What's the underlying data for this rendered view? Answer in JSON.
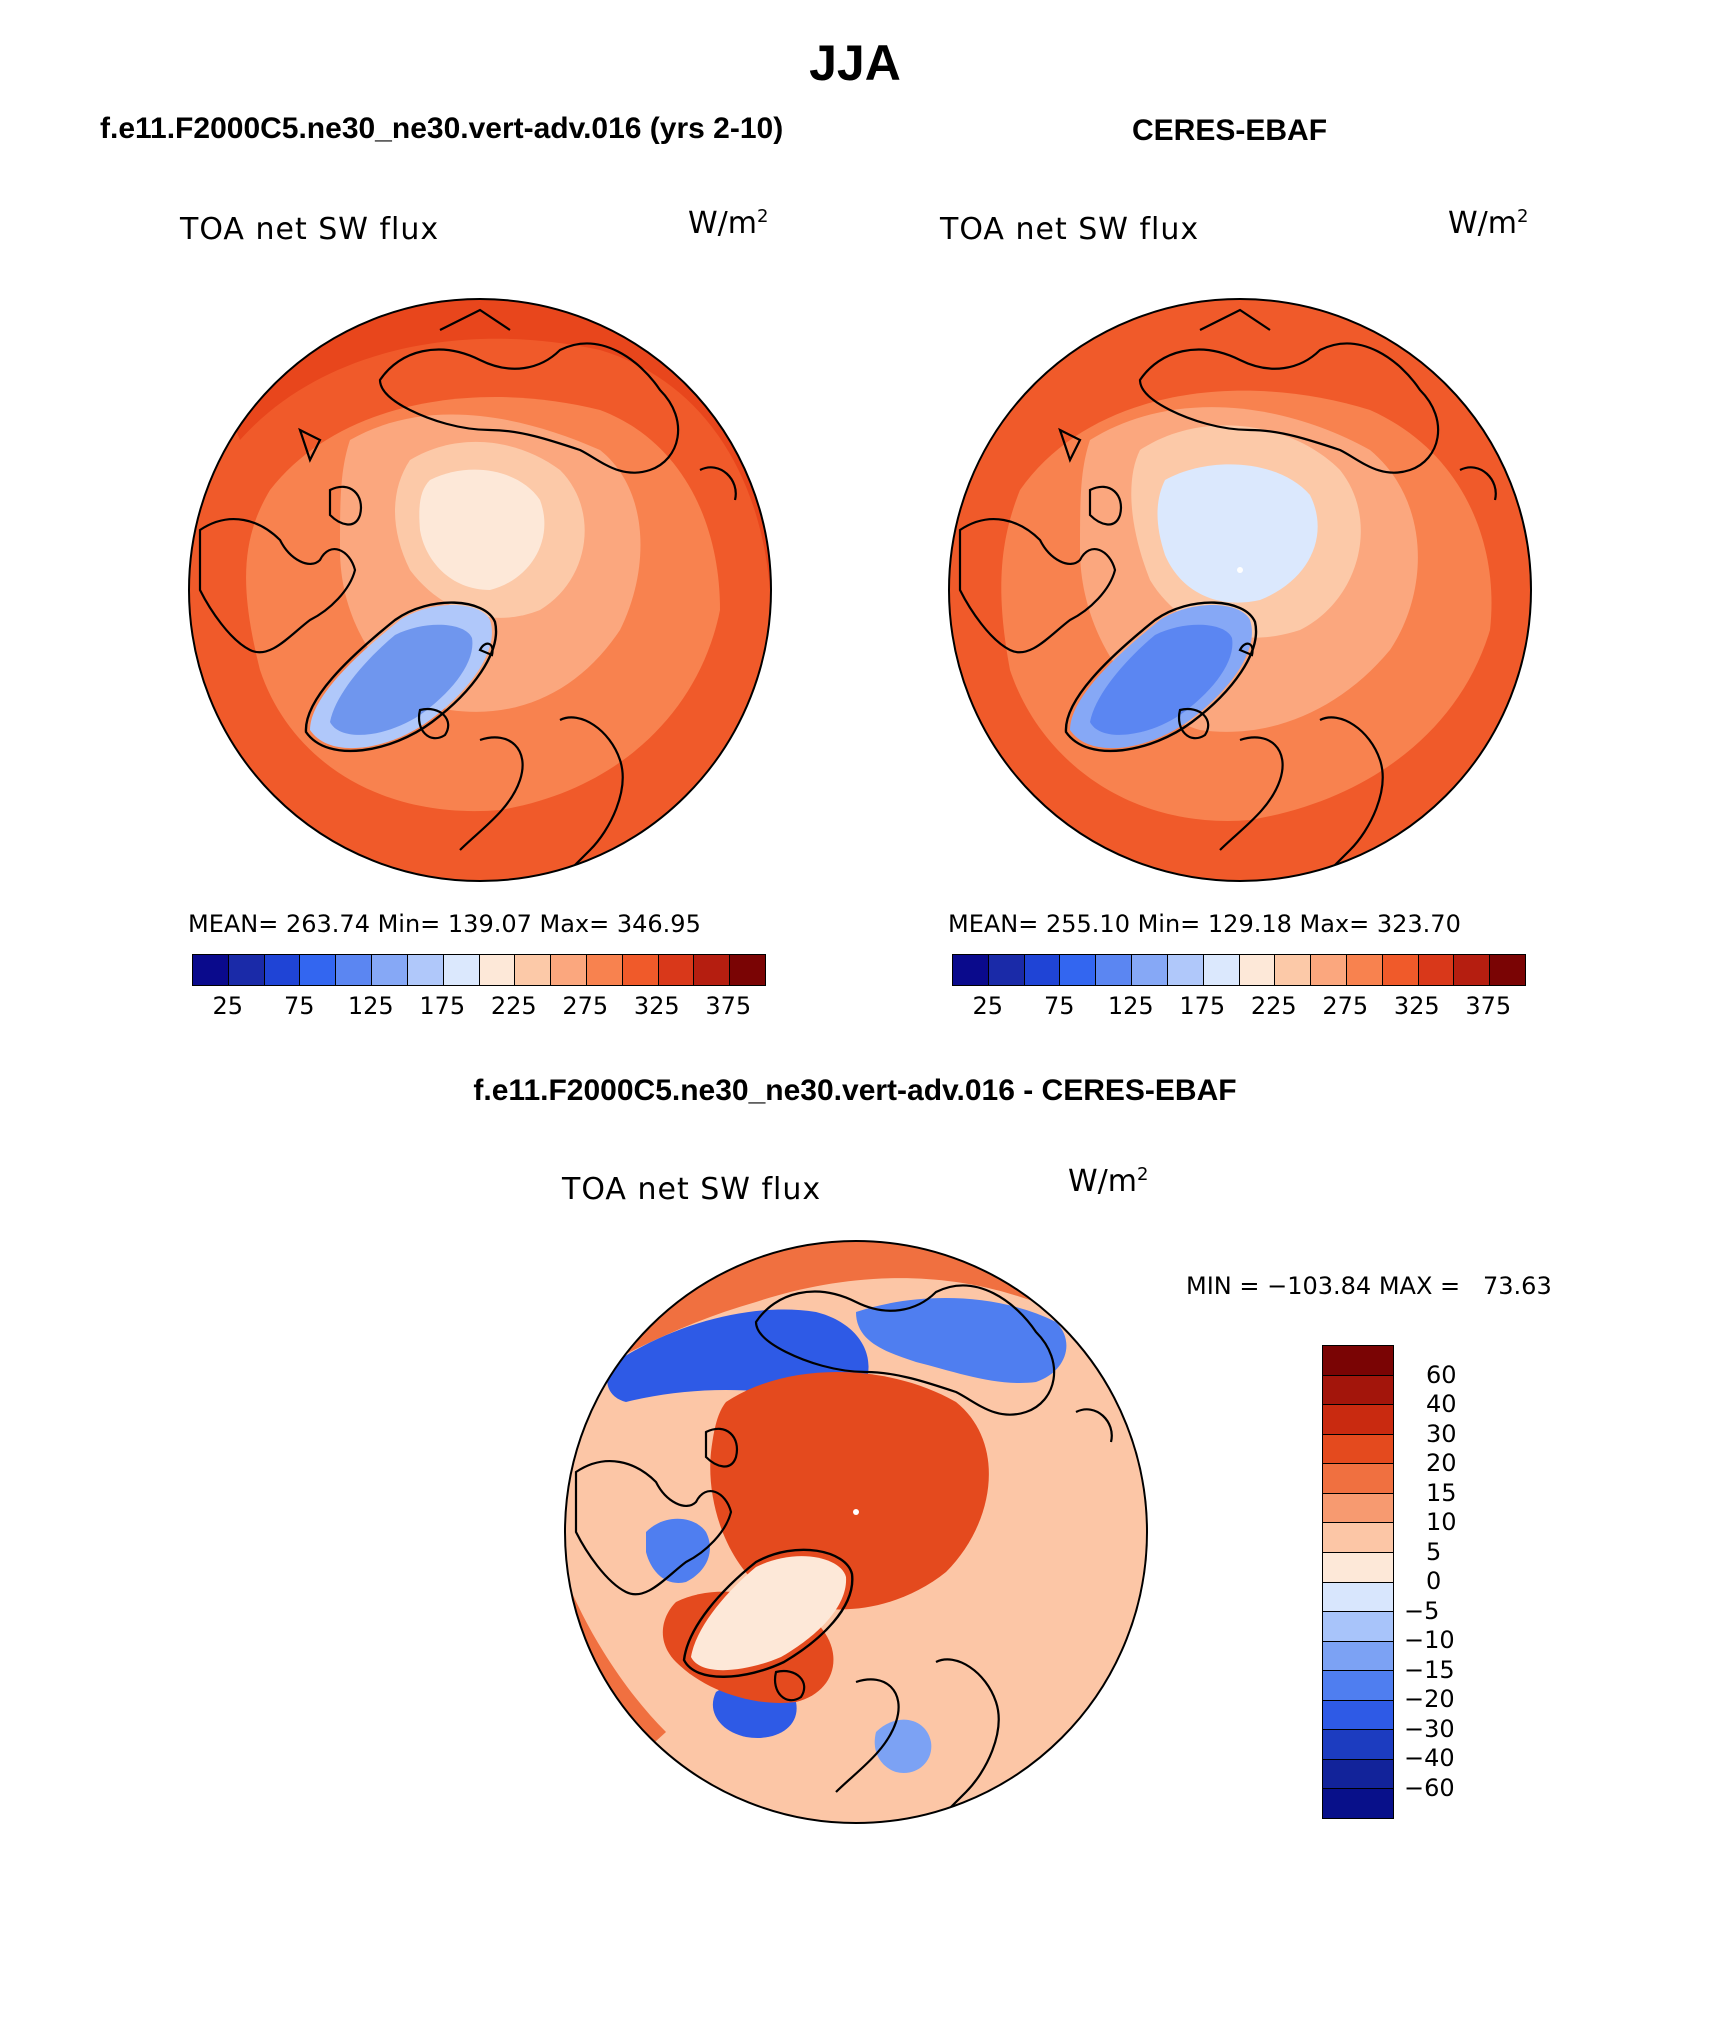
{
  "page": {
    "title": "JJA"
  },
  "panels": [
    {
      "heading": "f.e11.F2000C5.ne30_ne30.vert-adv.016 (yrs 2-10)",
      "variable": "TOA net SW flux",
      "units_base": "W/m",
      "units_exp": "2",
      "stats_text": "MEAN= 263.74   Min= 139.07   Max= 346.95",
      "mean": 263.74,
      "min": 139.07,
      "max": 346.95,
      "colorbar": {
        "ticks": [
          "25",
          "75",
          "125",
          "175",
          "225",
          "275",
          "325",
          "375"
        ],
        "colors": [
          "#0a0a8c",
          "#1a2aa8",
          "#1f44d6",
          "#3366f0",
          "#5b86f2",
          "#86a8f6",
          "#b0c8fa",
          "#dbe8fd",
          "#fde8d8",
          "#fcc9a8",
          "#fba77e",
          "#f8824f",
          "#f05a2a",
          "#d9381a",
          "#b51e10",
          "#7a0404"
        ]
      }
    },
    {
      "heading": "CERES-EBAF",
      "variable": "TOA net SW flux",
      "units_base": "W/m",
      "units_exp": "2",
      "stats_text": "MEAN= 255.10   Min= 129.18   Max= 323.70",
      "mean": 255.1,
      "min": 129.18,
      "max": 323.7,
      "colorbar": {
        "ticks": [
          "25",
          "75",
          "125",
          "175",
          "225",
          "275",
          "325",
          "375"
        ],
        "colors": [
          "#0a0a8c",
          "#1a2aa8",
          "#1f44d6",
          "#3366f0",
          "#5b86f2",
          "#86a8f6",
          "#b0c8fa",
          "#dbe8fd",
          "#fde8d8",
          "#fcc9a8",
          "#fba77e",
          "#f8824f",
          "#f05a2a",
          "#d9381a",
          "#b51e10",
          "#7a0404"
        ]
      }
    }
  ],
  "diff_panel": {
    "heading": "f.e11.F2000C5.ne30_ne30.vert-adv.016 - CERES-EBAF",
    "variable": "TOA net SW flux",
    "units_base": "W/m",
    "units_exp": "2",
    "minmax_text": "MIN = −103.84 MAX =   73.63",
    "min": -103.84,
    "max": 73.63,
    "colorbar": {
      "ticks": [
        "60",
        "40",
        "30",
        "20",
        "15",
        "10",
        "5",
        "0",
        "−5",
        "−10",
        "−15",
        "−20",
        "−30",
        "−40",
        "−60"
      ],
      "colors": [
        "#7a0404",
        "#a3150b",
        "#c92a10",
        "#e44a1e",
        "#f07040",
        "#f79a70",
        "#fcc6a6",
        "#fde8d8",
        "#d8e6fd",
        "#a8c4fa",
        "#7ca2f4",
        "#4f7ef0",
        "#2e5ae6",
        "#1c3cc0",
        "#12239a",
        "#08108a"
      ]
    }
  },
  "legend_colors": {
    "coast": "#000000",
    "land_ice_low": "#6f96ee",
    "ocean_mid": "#f8824f"
  }
}
